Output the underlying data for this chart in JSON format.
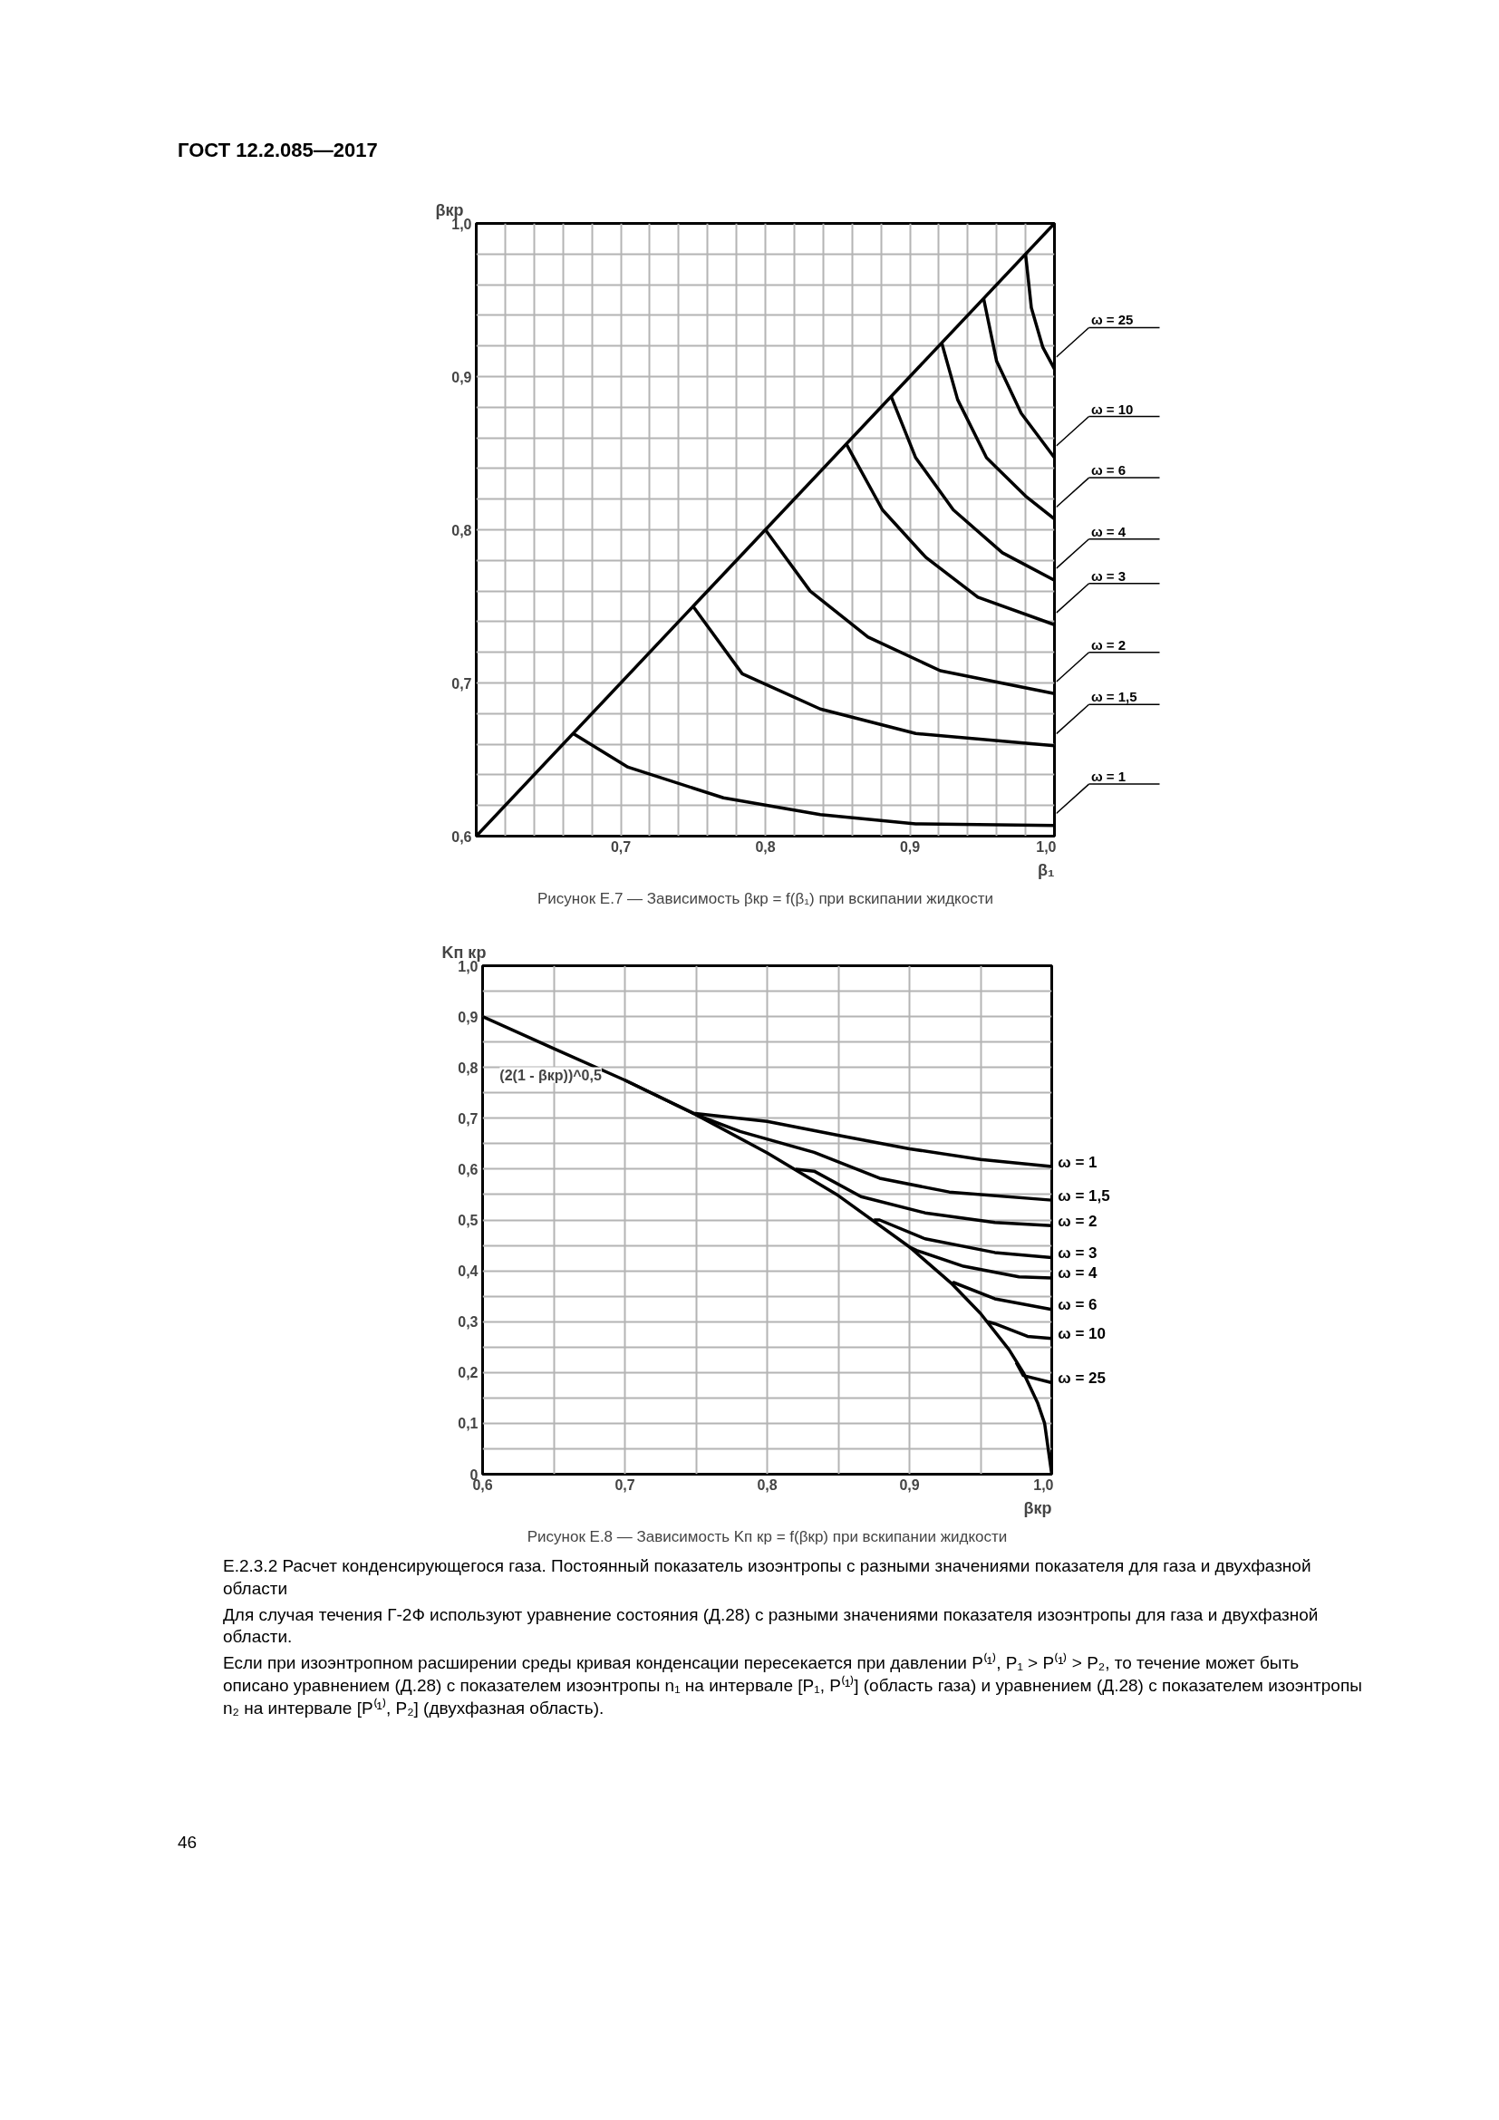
{
  "chart_data": [
    {
      "type": "line",
      "title": "Рисунок Е.7 — Зависимость βкр = f(β₁) при вскипании жидкости",
      "xlabel": "β₁",
      "ylabel": "βкр",
      "xlim": [
        0.6,
        1.0
      ],
      "ylim": [
        0.6,
        1.0
      ],
      "xticks": [
        {
          "value": 0.6,
          "label": null
        },
        {
          "value": 0.62,
          "label": null
        },
        {
          "value": 0.64,
          "label": null
        },
        {
          "value": 0.66,
          "label": null
        },
        {
          "value": 0.68,
          "label": null
        },
        {
          "value": 0.7,
          "label": "0,7"
        },
        {
          "value": 0.72,
          "label": null
        },
        {
          "value": 0.74,
          "label": null
        },
        {
          "value": 0.76,
          "label": null
        },
        {
          "value": 0.78,
          "label": null
        },
        {
          "value": 0.8,
          "label": "0,8"
        },
        {
          "value": 0.82,
          "label": null
        },
        {
          "value": 0.84,
          "label": null
        },
        {
          "value": 0.86,
          "label": null
        },
        {
          "value": 0.88,
          "label": null
        },
        {
          "value": 0.9,
          "label": "0,9"
        },
        {
          "value": 0.92,
          "label": null
        },
        {
          "value": 0.94,
          "label": null
        },
        {
          "value": 0.96,
          "label": null
        },
        {
          "value": 0.98,
          "label": null
        },
        {
          "value": 1.0,
          "label": "1,0"
        }
      ],
      "yticks": [
        {
          "value": 0.6,
          "label": "0,6"
        },
        {
          "value": 0.62,
          "label": null
        },
        {
          "value": 0.64,
          "label": null
        },
        {
          "value": 0.66,
          "label": null
        },
        {
          "value": 0.68,
          "label": null
        },
        {
          "value": 0.7,
          "label": "0,7"
        },
        {
          "value": 0.72,
          "label": null
        },
        {
          "value": 0.74,
          "label": null
        },
        {
          "value": 0.76,
          "label": null
        },
        {
          "value": 0.78,
          "label": null
        },
        {
          "value": 0.8,
          "label": "0,8"
        },
        {
          "value": 0.82,
          "label": null
        },
        {
          "value": 0.84,
          "label": null
        },
        {
          "value": 0.86,
          "label": null
        },
        {
          "value": 0.88,
          "label": null
        },
        {
          "value": 0.9,
          "label": "0,9"
        },
        {
          "value": 0.92,
          "label": null
        },
        {
          "value": 0.94,
          "label": null
        },
        {
          "value": 0.96,
          "label": null
        },
        {
          "value": 0.98,
          "label": null
        },
        {
          "value": 1.0,
          "label": "1,0"
        }
      ],
      "grid": true,
      "series": [
        {
          "color": "#000000",
          "x": [
            0.6,
            1.0
          ],
          "values": [
            0.6,
            1.0
          ]
        },
        {
          "name": "ω = 1",
          "color": "#000000",
          "x": [
            0.667,
            0.705,
            0.771,
            0.838,
            0.904,
            1.0
          ],
          "values": [
            0.667,
            0.645,
            0.625,
            0.614,
            0.608,
            0.607
          ]
        },
        {
          "name": "ω = 1,5",
          "color": "#000000",
          "x": [
            0.75,
            0.784,
            0.838,
            0.904,
            1.0
          ],
          "values": [
            0.75,
            0.706,
            0.683,
            0.667,
            0.659
          ]
        },
        {
          "name": "ω = 2",
          "color": "#000000",
          "x": [
            0.8,
            0.831,
            0.871,
            0.921,
            1.0
          ],
          "values": [
            0.8,
            0.76,
            0.73,
            0.708,
            0.693
          ]
        },
        {
          "name": "ω = 3",
          "color": "#000000",
          "x": [
            0.856,
            0.881,
            0.911,
            0.947,
            1.0
          ],
          "values": [
            0.856,
            0.813,
            0.782,
            0.756,
            0.738
          ]
        },
        {
          "name": "ω = 4",
          "color": "#000000",
          "x": [
            0.887,
            0.904,
            0.93,
            0.964,
            1.0
          ],
          "values": [
            0.887,
            0.847,
            0.813,
            0.785,
            0.767
          ]
        },
        {
          "name": "ω = 6",
          "color": "#000000",
          "x": [
            0.922,
            0.933,
            0.953,
            0.98,
            1.0
          ],
          "values": [
            0.922,
            0.885,
            0.847,
            0.822,
            0.807
          ]
        },
        {
          "name": "ω = 10",
          "color": "#000000",
          "x": [
            0.951,
            0.96,
            0.977,
            1.0
          ],
          "values": [
            0.951,
            0.91,
            0.876,
            0.847
          ]
        },
        {
          "name": "ω = 25",
          "color": "#000000",
          "x": [
            0.98,
            0.984,
            0.992,
            1.0
          ],
          "values": [
            0.98,
            0.945,
            0.919,
            0.905
          ]
        }
      ],
      "annotations": [
        "ГОСТ 12.2.085—2017"
      ]
    },
    {
      "type": "line",
      "title": "Рисунок Е.8 — Зависимость Kп кр = f(βкр) при вскипании жидкости",
      "xlabel": "βкр",
      "ylabel": "Kп кр",
      "xlim": [
        0.6,
        1.0
      ],
      "ylim": [
        0,
        1.0
      ],
      "xticks": [
        {
          "value": 0.6,
          "label": "0,6"
        },
        {
          "value": 0.65,
          "label": null
        },
        {
          "value": 0.7,
          "label": "0,7"
        },
        {
          "value": 0.75,
          "label": null
        },
        {
          "value": 0.8,
          "label": "0,8"
        },
        {
          "value": 0.85,
          "label": null
        },
        {
          "value": 0.9,
          "label": "0,9"
        },
        {
          "value": 0.95,
          "label": null
        },
        {
          "value": 1.0,
          "label": "1,0"
        }
      ],
      "yticks": [
        0,
        {
          "value": 0.05,
          "label": null
        },
        {
          "value": 0.1,
          "label": "0,1"
        },
        {
          "value": 0.15,
          "label": null
        },
        {
          "value": 0.2,
          "label": "0,2"
        },
        {
          "value": 0.25,
          "label": null
        },
        {
          "value": 0.3,
          "label": "0,3"
        },
        {
          "value": 0.35,
          "label": null
        },
        {
          "value": 0.4,
          "label": "0,4"
        },
        {
          "value": 0.45,
          "label": null
        },
        {
          "value": 0.5,
          "label": "0,5"
        },
        {
          "value": 0.55,
          "label": null
        },
        {
          "value": 0.6,
          "label": "0,6"
        },
        {
          "value": 0.65,
          "label": null
        },
        {
          "value": 0.7,
          "label": "0,7"
        },
        {
          "value": 0.75,
          "label": null
        },
        {
          "value": 0.8,
          "label": "0,8"
        },
        {
          "value": 0.85,
          "label": null
        },
        {
          "value": 0.9,
          "label": "0,9"
        },
        {
          "value": 0.95,
          "label": null
        },
        {
          "value": 1.0,
          "label": "1,0"
        }
      ],
      "grid": true,
      "series": [
        {
          "name": "(2(1 - βкр))^0,5",
          "color": "#000000",
          "x": [
            0.6,
            0.65,
            0.7,
            0.75,
            0.8,
            0.85,
            0.9,
            0.93,
            0.95,
            0.97,
            0.98,
            0.99,
            0.995,
            1.0
          ],
          "values": [
            0.9,
            0.837,
            0.775,
            0.707,
            0.632,
            0.548,
            0.447,
            0.374,
            0.316,
            0.245,
            0.2,
            0.141,
            0.1,
            0.0
          ]
        },
        {
          "name": "ω = 1",
          "color": "#000000",
          "x": [
            0.7,
            0.748,
            0.8,
            0.853,
            0.9,
            0.95,
            1.0
          ],
          "values": [
            0.775,
            0.71,
            0.694,
            0.665,
            0.64,
            0.619,
            0.605
          ]
        },
        {
          "name": "ω = 1,5",
          "color": "#000000",
          "x": [
            0.75,
            0.781,
            0.833,
            0.879,
            0.928,
            1.0
          ],
          "values": [
            0.707,
            0.674,
            0.633,
            0.582,
            0.555,
            0.539
          ]
        },
        {
          "name": "ω = 2",
          "color": "#000000",
          "x": [
            0.82,
            0.833,
            0.866,
            0.911,
            0.96,
            1.0
          ],
          "values": [
            0.6,
            0.596,
            0.546,
            0.514,
            0.495,
            0.489
          ]
        },
        {
          "name": "ω = 3",
          "color": "#000000",
          "x": [
            0.875,
            0.879,
            0.911,
            0.96,
            1.0
          ],
          "values": [
            0.5,
            0.5,
            0.463,
            0.436,
            0.426
          ]
        },
        {
          "name": "ω = 4",
          "color": "#000000",
          "x": [
            0.9,
            0.905,
            0.938,
            0.977,
            1.0
          ],
          "values": [
            0.447,
            0.44,
            0.409,
            0.388,
            0.386
          ]
        },
        {
          "name": "ω = 6",
          "color": "#000000",
          "x": [
            0.93,
            0.931,
            0.96,
            1.0
          ],
          "values": [
            0.374,
            0.377,
            0.345,
            0.324
          ]
        },
        {
          "name": "ω = 10",
          "color": "#000000",
          "x": [
            0.955,
            0.96,
            0.983,
            1.0
          ],
          "values": [
            0.3,
            0.296,
            0.271,
            0.267
          ]
        },
        {
          "name": "ω = 25",
          "color": "#000000",
          "x": [
            0.975,
            0.98,
            1.0
          ],
          "values": [
            0.22,
            0.194,
            0.18
          ]
        }
      ],
      "annotations": [
        "Е.2.3.2 Расчет конденсирующегося газа. Постоянный показатель изоэнтропы с разными значениями показателя для газа и двухфазной области",
        "Для случая течения Г-2Ф используют уравнение состояния (Д.28) с разными значениями показателя изоэнтропы для газа и двухфазной области.",
        "Если при изоэнтропном расширении среды кривая конденсации пересекается при давлении P⁽¹⁾, P₁ > P⁽¹⁾ > P₂, то течение может быть описано уравнением (Д.28) с показателем изоэнтропы n₁ на интервале [P₁, P⁽¹⁾] (область газа) и уравнением (Д.28) с показателем изоэнтропы n₂ на интервале [P⁽¹⁾, P₂] (двухфазная область).",
        "46"
      ]
    }
  ]
}
